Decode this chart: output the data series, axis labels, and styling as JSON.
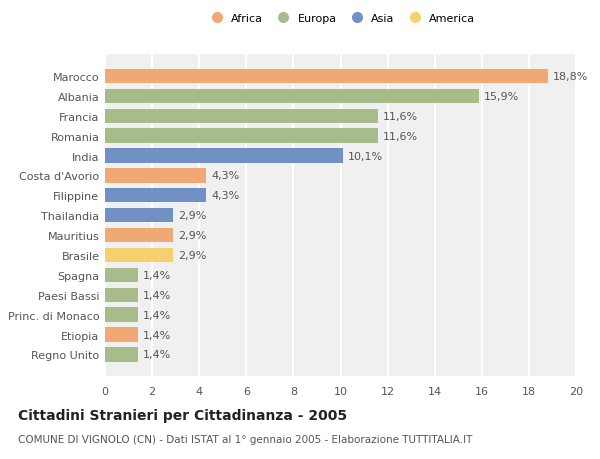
{
  "countries": [
    "Marocco",
    "Albania",
    "Francia",
    "Romania",
    "India",
    "Costa d'Avorio",
    "Filippine",
    "Thailandia",
    "Mauritius",
    "Brasile",
    "Spagna",
    "Paesi Bassi",
    "Princ. di Monaco",
    "Etiopia",
    "Regno Unito"
  ],
  "values": [
    18.8,
    15.9,
    11.6,
    11.6,
    10.1,
    4.3,
    4.3,
    2.9,
    2.9,
    2.9,
    1.4,
    1.4,
    1.4,
    1.4,
    1.4
  ],
  "labels": [
    "18,8%",
    "15,9%",
    "11,6%",
    "11,6%",
    "10,1%",
    "4,3%",
    "4,3%",
    "2,9%",
    "2,9%",
    "2,9%",
    "1,4%",
    "1,4%",
    "1,4%",
    "1,4%",
    "1,4%"
  ],
  "continent": [
    "Africa",
    "Europa",
    "Europa",
    "Europa",
    "Asia",
    "Africa",
    "Asia",
    "Asia",
    "Africa",
    "America",
    "Europa",
    "Europa",
    "Europa",
    "Africa",
    "Europa"
  ],
  "colors": {
    "Africa": "#F0A875",
    "Europa": "#A8BB8A",
    "Asia": "#7191C4",
    "America": "#F5D06E"
  },
  "legend_order": [
    "Africa",
    "Europa",
    "Asia",
    "America"
  ],
  "xlim": [
    0,
    20
  ],
  "xticks": [
    0,
    2,
    4,
    6,
    8,
    10,
    12,
    14,
    16,
    18,
    20
  ],
  "title": "Cittadini Stranieri per Cittadinanza - 2005",
  "subtitle": "COMUNE DI VIGNOLO (CN) - Dati ISTAT al 1° gennaio 2005 - Elaborazione TUTTITALIA.IT",
  "bg_color": "#ffffff",
  "plot_bg_color": "#f0f0f0",
  "grid_color": "#ffffff",
  "bar_height": 0.72,
  "label_fontsize": 8.0,
  "tick_fontsize": 8.0,
  "title_fontsize": 10.0,
  "subtitle_fontsize": 7.5
}
